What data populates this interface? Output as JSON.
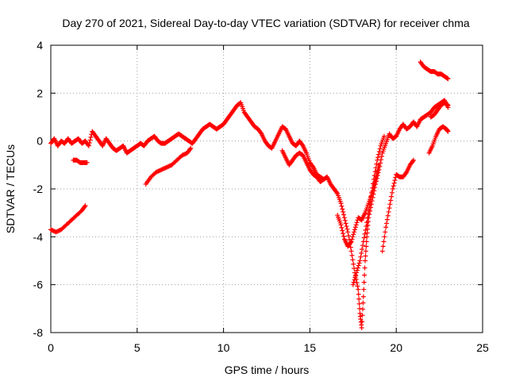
{
  "chart_data": {
    "type": "scatter",
    "title": "Day 270 of 2021, Sidereal Day-to-day VTEC variation (SDTVAR) for receiver chma",
    "xlabel": "GPS time / hours",
    "ylabel": "SDTVAR / TECUs",
    "xlim": [
      0,
      25
    ],
    "ylim": [
      -8,
      4
    ],
    "xticks": [
      0,
      5,
      10,
      15,
      20,
      25
    ],
    "yticks": [
      -8,
      -6,
      -4,
      -2,
      0,
      2,
      4
    ],
    "grid": true,
    "marker": "+",
    "color": "#ff0000",
    "series": [
      {
        "points": [
          [
            0.0,
            -0.1
          ],
          [
            0.2,
            0.1
          ],
          [
            0.4,
            -0.2
          ],
          [
            0.6,
            0.0
          ],
          [
            0.8,
            -0.1
          ],
          [
            1.0,
            0.1
          ],
          [
            1.2,
            -0.1
          ],
          [
            1.4,
            0.0
          ],
          [
            1.6,
            0.1
          ],
          [
            1.8,
            -0.1
          ],
          [
            2.0,
            0.0
          ],
          [
            2.2,
            -0.2
          ],
          [
            2.4,
            0.4
          ],
          [
            2.6,
            0.2
          ],
          [
            2.8,
            0.0
          ],
          [
            3.0,
            -0.2
          ],
          [
            3.2,
            0.1
          ],
          [
            3.4,
            -0.1
          ],
          [
            3.6,
            -0.3
          ],
          [
            3.8,
            -0.4
          ],
          [
            4.0,
            -0.3
          ],
          [
            4.2,
            -0.2
          ],
          [
            4.4,
            -0.5
          ],
          [
            4.6,
            -0.4
          ],
          [
            4.8,
            -0.3
          ],
          [
            5.0,
            -0.2
          ],
          [
            5.2,
            -0.1
          ],
          [
            5.4,
            -0.2
          ],
          [
            5.6,
            0.0
          ],
          [
            5.8,
            0.1
          ],
          [
            6.0,
            0.2
          ],
          [
            6.2,
            0.0
          ],
          [
            6.4,
            -0.1
          ],
          [
            6.6,
            -0.1
          ],
          [
            6.8,
            0.0
          ],
          [
            7.0,
            0.1
          ],
          [
            7.2,
            0.2
          ],
          [
            7.4,
            0.3
          ],
          [
            7.6,
            0.2
          ],
          [
            7.8,
            0.1
          ],
          [
            8.0,
            0.0
          ],
          [
            8.2,
            -0.1
          ],
          [
            8.4,
            0.1
          ],
          [
            8.6,
            0.3
          ],
          [
            8.8,
            0.5
          ],
          [
            9.0,
            0.6
          ],
          [
            9.2,
            0.7
          ],
          [
            9.4,
            0.6
          ],
          [
            9.6,
            0.5
          ],
          [
            9.8,
            0.6
          ],
          [
            10.0,
            0.7
          ],
          [
            10.2,
            0.9
          ],
          [
            10.4,
            1.1
          ],
          [
            10.6,
            1.3
          ],
          [
            10.8,
            1.5
          ],
          [
            11.0,
            1.6
          ],
          [
            11.2,
            1.2
          ],
          [
            11.4,
            1.0
          ],
          [
            11.6,
            0.8
          ],
          [
            11.8,
            0.6
          ],
          [
            12.0,
            0.5
          ],
          [
            12.2,
            0.3
          ],
          [
            12.4,
            0.0
          ],
          [
            12.6,
            -0.2
          ],
          [
            12.8,
            -0.3
          ],
          [
            13.0,
            0.0
          ],
          [
            13.2,
            0.3
          ],
          [
            13.4,
            0.6
          ],
          [
            13.6,
            0.5
          ],
          [
            13.8,
            0.2
          ],
          [
            14.0,
            -0.1
          ],
          [
            14.2,
            -0.2
          ],
          [
            14.4,
            0.0
          ],
          [
            14.6,
            -0.2
          ],
          [
            14.8,
            -0.5
          ],
          [
            15.0,
            -0.9
          ],
          [
            15.2,
            -1.1
          ],
          [
            15.4,
            -1.4
          ],
          [
            15.6,
            -1.5
          ],
          [
            15.8,
            -1.6
          ],
          [
            16.0,
            -1.5
          ],
          [
            16.2,
            -1.8
          ],
          [
            16.4,
            -2.0
          ],
          [
            16.6,
            -2.2
          ],
          [
            16.8,
            -2.6
          ],
          [
            17.0,
            -3.2
          ],
          [
            17.2,
            -3.8
          ],
          [
            17.4,
            -4.6
          ],
          [
            17.6,
            -5.5
          ],
          [
            17.8,
            -6.2
          ],
          [
            17.9,
            -7.2
          ],
          [
            18.0,
            -7.8
          ],
          [
            18.1,
            -6.5
          ],
          [
            18.2,
            -5.0
          ],
          [
            18.3,
            -4.0
          ],
          [
            18.4,
            -3.2
          ],
          [
            18.6,
            -2.5
          ],
          [
            18.8,
            -1.8
          ],
          [
            19.0,
            -1.2
          ],
          [
            19.2,
            -0.5
          ],
          [
            19.4,
            -0.1
          ],
          [
            19.6,
            0.3
          ],
          [
            19.8,
            0.1
          ],
          [
            20.0,
            0.2
          ],
          [
            20.2,
            0.5
          ],
          [
            20.4,
            0.7
          ],
          [
            20.6,
            0.5
          ],
          [
            20.8,
            0.6
          ],
          [
            21.0,
            0.8
          ],
          [
            21.2,
            0.6
          ],
          [
            21.4,
            0.9
          ],
          [
            21.6,
            1.0
          ],
          [
            21.8,
            1.1
          ],
          [
            22.0,
            1.2
          ],
          [
            22.2,
            1.4
          ],
          [
            22.4,
            1.5
          ],
          [
            22.6,
            1.6
          ],
          [
            22.8,
            1.7
          ],
          [
            23.0,
            1.4
          ]
        ]
      },
      {
        "points": [
          [
            1.3,
            -0.8
          ],
          [
            1.5,
            -0.8
          ],
          [
            1.7,
            -0.9
          ],
          [
            1.9,
            -0.9
          ],
          [
            2.1,
            -0.9
          ]
        ]
      },
      {
        "points": [
          [
            0.0,
            -3.7
          ],
          [
            0.3,
            -3.8
          ],
          [
            0.6,
            -3.7
          ],
          [
            0.9,
            -3.5
          ],
          [
            1.2,
            -3.3
          ],
          [
            1.5,
            -3.1
          ],
          [
            1.8,
            -2.9
          ],
          [
            2.0,
            -2.7
          ]
        ]
      },
      {
        "points": [
          [
            5.5,
            -1.8
          ],
          [
            5.8,
            -1.5
          ],
          [
            6.1,
            -1.3
          ],
          [
            6.4,
            -1.2
          ],
          [
            6.7,
            -1.1
          ],
          [
            7.0,
            -1.0
          ],
          [
            7.3,
            -0.8
          ],
          [
            7.6,
            -0.6
          ],
          [
            7.9,
            -0.5
          ],
          [
            8.1,
            -0.3
          ]
        ]
      },
      {
        "points": [
          [
            13.4,
            -0.4
          ],
          [
            13.6,
            -0.7
          ],
          [
            13.8,
            -1.0
          ],
          [
            14.0,
            -0.8
          ],
          [
            14.2,
            -0.6
          ],
          [
            14.4,
            -0.5
          ],
          [
            14.6,
            -0.6
          ],
          [
            14.8,
            -0.9
          ],
          [
            15.0,
            -1.2
          ],
          [
            15.2,
            -1.4
          ],
          [
            15.4,
            -1.5
          ],
          [
            15.6,
            -1.7
          ],
          [
            15.8,
            -1.6
          ]
        ]
      },
      {
        "points": [
          [
            16.6,
            -3.1
          ],
          [
            16.8,
            -3.5
          ],
          [
            17.0,
            -4.1
          ],
          [
            17.2,
            -4.4
          ],
          [
            17.4,
            -4.2
          ],
          [
            17.6,
            -3.7
          ],
          [
            17.8,
            -3.2
          ],
          [
            18.0,
            -3.3
          ],
          [
            18.2,
            -3.0
          ],
          [
            18.4,
            -2.6
          ],
          [
            18.6,
            -2.2
          ],
          [
            18.8,
            -1.6
          ],
          [
            19.0,
            -1.0
          ]
        ]
      },
      {
        "points": [
          [
            17.5,
            -6.0
          ],
          [
            17.7,
            -5.5
          ],
          [
            17.9,
            -5.0
          ],
          [
            18.1,
            -4.2
          ],
          [
            18.3,
            -3.4
          ],
          [
            18.5,
            -2.5
          ],
          [
            18.7,
            -1.6
          ],
          [
            18.9,
            -0.8
          ],
          [
            19.1,
            -0.2
          ],
          [
            19.3,
            0.2
          ]
        ]
      },
      {
        "points": [
          [
            19.2,
            -4.6
          ],
          [
            19.4,
            -3.6
          ],
          [
            19.6,
            -2.8
          ],
          [
            19.8,
            -2.0
          ],
          [
            20.0,
            -1.4
          ],
          [
            20.2,
            -1.5
          ],
          [
            20.4,
            -1.5
          ],
          [
            20.6,
            -1.3
          ],
          [
            20.8,
            -1.0
          ],
          [
            21.0,
            -0.8
          ]
        ]
      },
      {
        "points": [
          [
            21.4,
            3.3
          ],
          [
            21.6,
            3.1
          ],
          [
            21.8,
            3.0
          ],
          [
            22.0,
            2.9
          ],
          [
            22.2,
            2.9
          ],
          [
            22.4,
            2.8
          ],
          [
            22.6,
            2.8
          ],
          [
            22.8,
            2.7
          ],
          [
            23.0,
            2.6
          ]
        ]
      },
      {
        "points": [
          [
            21.9,
            -0.5
          ],
          [
            22.1,
            -0.2
          ],
          [
            22.3,
            0.2
          ],
          [
            22.5,
            0.5
          ],
          [
            22.7,
            0.6
          ],
          [
            22.9,
            0.5
          ],
          [
            23.0,
            0.4
          ]
        ]
      },
      {
        "points": [
          [
            22.0,
            1.0
          ],
          [
            22.2,
            1.1
          ],
          [
            22.4,
            1.3
          ],
          [
            22.6,
            1.5
          ],
          [
            22.8,
            1.6
          ],
          [
            23.0,
            1.5
          ]
        ]
      }
    ]
  }
}
